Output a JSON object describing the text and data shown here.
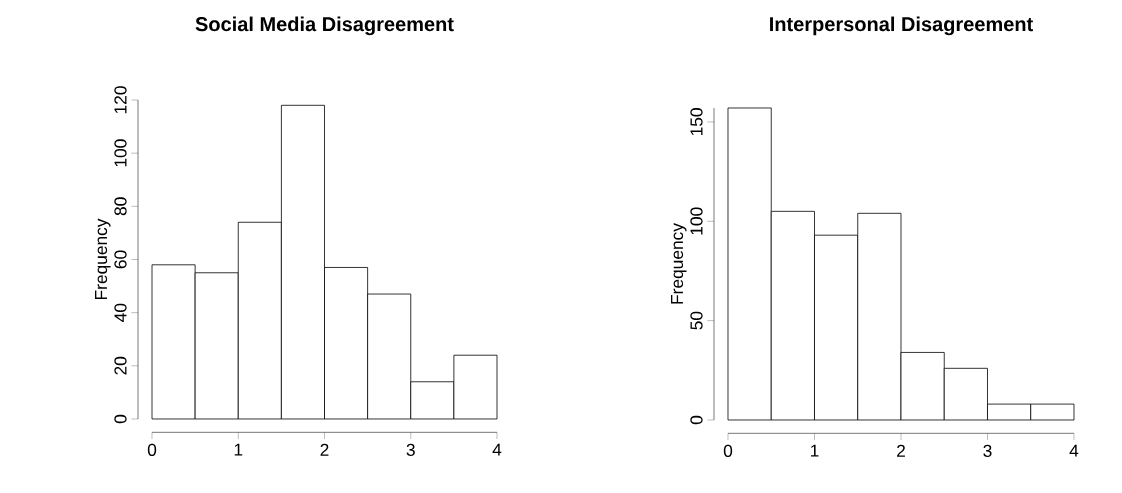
{
  "chart_data": [
    {
      "type": "histogram",
      "title": "Social Media Disagreement",
      "ylabel": "Frequency",
      "bins": [
        0,
        0.5,
        1,
        1.5,
        2,
        2.5,
        3,
        3.5,
        4
      ],
      "values": [
        58,
        55,
        74,
        118,
        57,
        47,
        14,
        24
      ],
      "color": "#ffffff",
      "xlim": [
        0,
        4
      ],
      "ylim": [
        0,
        120
      ],
      "xticks": [
        0,
        1,
        2,
        3,
        4
      ],
      "yticks": [
        0,
        20,
        40,
        60,
        80,
        100,
        120
      ]
    },
    {
      "type": "histogram",
      "title": "Interpersonal Disagreement",
      "ylabel": "Frequency",
      "bins": [
        0,
        0.5,
        1,
        1.5,
        2,
        2.5,
        3,
        3.5,
        4
      ],
      "values": [
        157,
        105,
        93,
        104,
        34,
        26,
        8,
        8
      ],
      "color": "#ffffff",
      "xlim": [
        0,
        4
      ],
      "ylim": [
        0,
        157
      ],
      "xticks": [
        0,
        1,
        2,
        3,
        4
      ],
      "yticks": [
        0,
        50,
        100,
        150
      ]
    }
  ]
}
